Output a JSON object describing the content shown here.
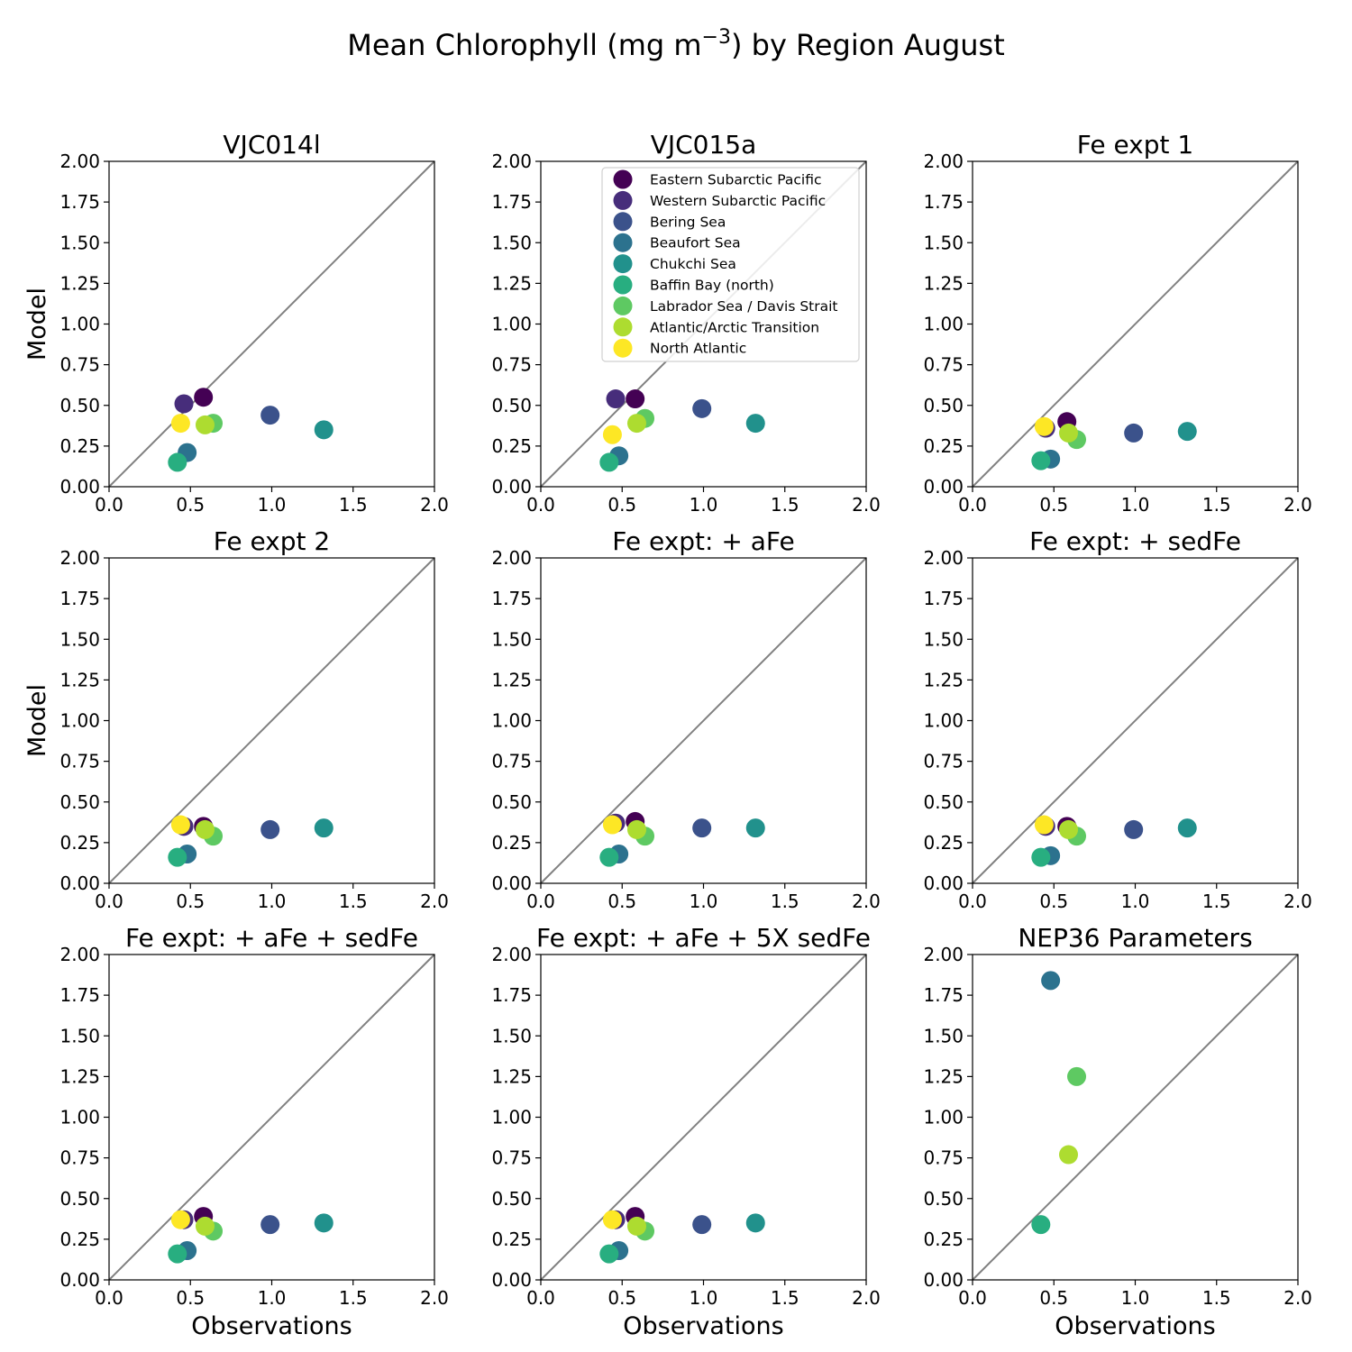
{
  "figure": {
    "suptitle": "Mean Chlorophyll (mg m^-3) by Region August"
  },
  "regions": [
    {
      "name": "Eastern Subarctic Pacific",
      "color": "#440154"
    },
    {
      "name": "Western Subarctic Pacific",
      "color": "#472d7b"
    },
    {
      "name": "Bering Sea",
      "color": "#3b528b"
    },
    {
      "name": "Beaufort Sea",
      "color": "#2c728e"
    },
    {
      "name": "Chukchi Sea",
      "color": "#21918c"
    },
    {
      "name": "Baffin Bay (north)",
      "color": "#28ae80"
    },
    {
      "name": "Labrador Sea / Davis Strait",
      "color": "#5ec962"
    },
    {
      "name": "Atlantic/Arctic Transition",
      "color": "#addc30"
    },
    {
      "name": "North Atlantic",
      "color": "#fde725"
    }
  ],
  "axes_common": {
    "xlabel": "Observations",
    "ylabel": "Model",
    "xlim": [
      0,
      2
    ],
    "ylim": [
      0,
      2
    ],
    "xticks": [
      "0.0",
      "0.5",
      "1.0",
      "1.5",
      "2.0"
    ],
    "yticks": [
      "0.00",
      "0.25",
      "0.50",
      "0.75",
      "1.00",
      "1.25",
      "1.50",
      "1.75",
      "2.00"
    ],
    "identity_line_color": "#808080",
    "legend_location": "upper right of second panel"
  },
  "chart_data": [
    {
      "type": "scatter",
      "title": "VJC014l",
      "x": [
        0.58,
        0.46,
        0.99,
        0.48,
        1.32,
        0.42,
        0.64,
        0.59,
        0.44
      ],
      "y": [
        0.55,
        0.51,
        0.44,
        0.21,
        0.35,
        0.15,
        0.39,
        0.38,
        0.39
      ]
    },
    {
      "type": "scatter",
      "title": "VJC015a",
      "x": [
        0.58,
        0.46,
        0.99,
        0.48,
        1.32,
        0.42,
        0.64,
        0.59,
        0.44
      ],
      "y": [
        0.54,
        0.54,
        0.48,
        0.19,
        0.39,
        0.15,
        0.42,
        0.39,
        0.32
      ]
    },
    {
      "type": "scatter",
      "title": "Fe expt 1",
      "x": [
        0.58,
        0.45,
        0.99,
        0.48,
        1.32,
        0.42,
        0.64,
        0.59,
        0.44
      ],
      "y": [
        0.4,
        0.36,
        0.33,
        0.17,
        0.34,
        0.16,
        0.29,
        0.33,
        0.37
      ]
    },
    {
      "type": "scatter",
      "title": "Fe expt 2",
      "x": [
        0.58,
        0.46,
        0.99,
        0.48,
        1.32,
        0.42,
        0.64,
        0.59,
        0.44
      ],
      "y": [
        0.35,
        0.35,
        0.33,
        0.18,
        0.34,
        0.16,
        0.29,
        0.33,
        0.36
      ]
    },
    {
      "type": "scatter",
      "title": "Fe expt: + aFe",
      "x": [
        0.58,
        0.46,
        0.99,
        0.48,
        1.32,
        0.42,
        0.64,
        0.59,
        0.44
      ],
      "y": [
        0.38,
        0.37,
        0.34,
        0.18,
        0.34,
        0.16,
        0.29,
        0.33,
        0.36
      ]
    },
    {
      "type": "scatter",
      "title": "Fe expt: + sedFe",
      "x": [
        0.58,
        0.45,
        0.99,
        0.48,
        1.32,
        0.42,
        0.64,
        0.59,
        0.44
      ],
      "y": [
        0.35,
        0.35,
        0.33,
        0.17,
        0.34,
        0.16,
        0.29,
        0.33,
        0.36
      ]
    },
    {
      "type": "scatter",
      "title": "Fe expt: + aFe + sedFe",
      "x": [
        0.58,
        0.46,
        0.99,
        0.48,
        1.32,
        0.42,
        0.64,
        0.59,
        0.44
      ],
      "y": [
        0.39,
        0.37,
        0.34,
        0.18,
        0.35,
        0.16,
        0.3,
        0.33,
        0.37
      ]
    },
    {
      "type": "scatter",
      "title": "Fe expt: + aFe + 5X sedFe",
      "x": [
        0.58,
        0.46,
        0.99,
        0.48,
        1.32,
        0.42,
        0.64,
        0.59,
        0.44
      ],
      "y": [
        0.39,
        0.37,
        0.34,
        0.18,
        0.35,
        0.16,
        0.3,
        0.33,
        0.37
      ]
    },
    {
      "type": "scatter",
      "title": "NEP36 Parameters",
      "x": [
        null,
        null,
        null,
        0.48,
        null,
        0.42,
        0.64,
        0.59,
        null
      ],
      "y": [
        null,
        null,
        null,
        1.84,
        null,
        0.34,
        1.25,
        0.77,
        null
      ]
    }
  ]
}
